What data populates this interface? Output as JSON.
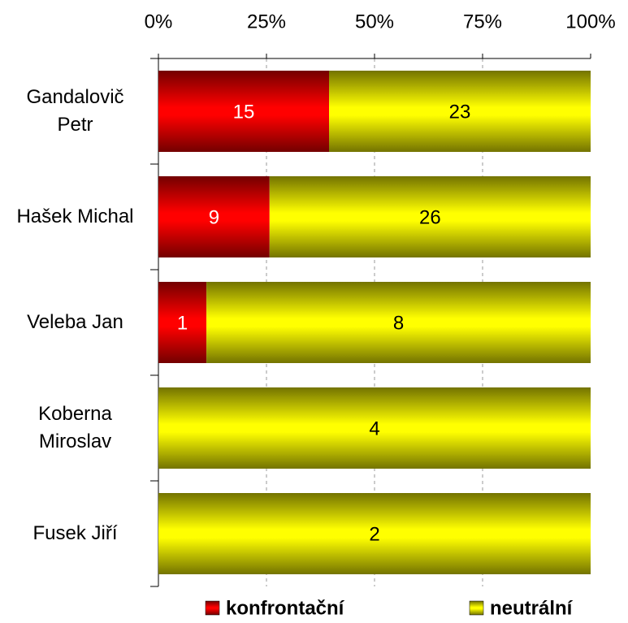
{
  "chart_data": {
    "type": "bar",
    "orientation": "horizontal",
    "stacking": "percent",
    "categories": [
      "Gandalovič Petr",
      "Hašek Michal",
      "Veleba Jan",
      "Koberna Miroslav",
      "Fusek Jiří"
    ],
    "series": [
      {
        "name": "konfrontační",
        "color": "#ff0000",
        "label_color": "#ffffff",
        "values": [
          15,
          9,
          1,
          0,
          0
        ]
      },
      {
        "name": "neutrální",
        "color": "#ffff00",
        "label_color": "#000000",
        "values": [
          23,
          26,
          8,
          4,
          2
        ]
      }
    ],
    "xlim": [
      0,
      100
    ],
    "xticks": [
      {
        "value": 0,
        "label": "0%"
      },
      {
        "value": 25,
        "label": "25%"
      },
      {
        "value": 50,
        "label": "50%"
      },
      {
        "value": 75,
        "label": "75%"
      },
      {
        "value": 100,
        "label": "100%"
      }
    ],
    "grid": true,
    "legend": "bottom"
  }
}
